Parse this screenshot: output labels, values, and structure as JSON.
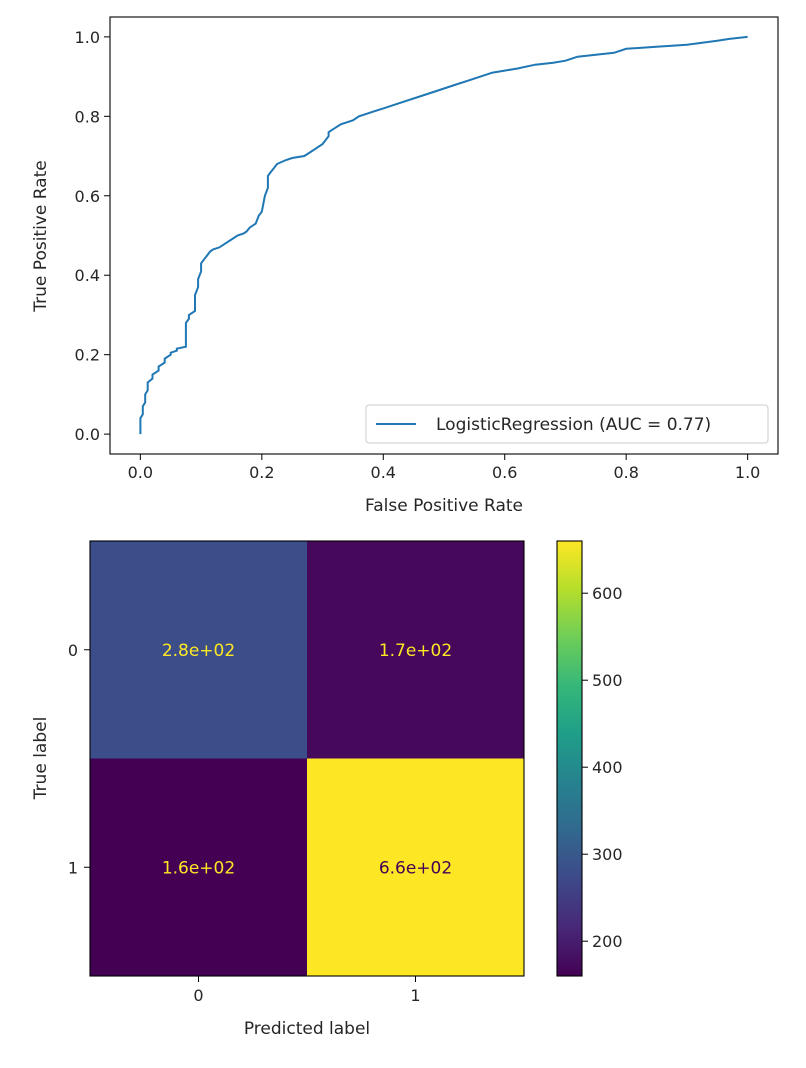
{
  "colors": {
    "roc_line": "#1f77b4",
    "axis": "#000000",
    "cell_text_dark_bg": "#fde725",
    "cell_text_light_bg": "#440154",
    "colorbar_stops": [
      "#440154",
      "#482878",
      "#3e4989",
      "#31688e",
      "#26828e",
      "#1f9e89",
      "#35b779",
      "#6ece58",
      "#b5de2b",
      "#fde725"
    ]
  },
  "chart_data": [
    {
      "type": "line",
      "xlabel": "False Positive Rate",
      "ylabel": "True Positive Rate",
      "xlim": [
        -0.05,
        1.05
      ],
      "ylim": [
        -0.05,
        1.05
      ],
      "xticks": [
        0.0,
        0.2,
        0.4,
        0.6,
        0.8,
        1.0
      ],
      "xtick_labels": [
        "0.0",
        "0.2",
        "0.4",
        "0.6",
        "0.8",
        "1.0"
      ],
      "yticks": [
        0.0,
        0.2,
        0.4,
        0.6,
        0.8,
        1.0
      ],
      "ytick_labels": [
        "0.0",
        "0.2",
        "0.4",
        "0.6",
        "0.8",
        "1.0"
      ],
      "grid": false,
      "legend": "lower-right",
      "series": [
        {
          "name": "LogisticRegression (AUC = 0.77)",
          "x": [
            0.0,
            0.0,
            0.004,
            0.004,
            0.008,
            0.008,
            0.012,
            0.012,
            0.02,
            0.02,
            0.03,
            0.03,
            0.04,
            0.04,
            0.05,
            0.05,
            0.06,
            0.06,
            0.075,
            0.075,
            0.08,
            0.08,
            0.09,
            0.09,
            0.095,
            0.095,
            0.1,
            0.1,
            0.105,
            0.11,
            0.115,
            0.12,
            0.13,
            0.14,
            0.15,
            0.16,
            0.17,
            0.175,
            0.18,
            0.19,
            0.195,
            0.2,
            0.205,
            0.21,
            0.21,
            0.215,
            0.22,
            0.225,
            0.24,
            0.25,
            0.27,
            0.28,
            0.29,
            0.3,
            0.31,
            0.31,
            0.32,
            0.33,
            0.35,
            0.36,
            0.37,
            0.38,
            0.4,
            0.42,
            0.44,
            0.46,
            0.48,
            0.5,
            0.52,
            0.54,
            0.56,
            0.58,
            0.6,
            0.62,
            0.65,
            0.68,
            0.7,
            0.72,
            0.75,
            0.78,
            0.8,
            0.85,
            0.9,
            0.95,
            0.97,
            1.0
          ],
          "y": [
            0.0,
            0.04,
            0.05,
            0.07,
            0.08,
            0.1,
            0.11,
            0.13,
            0.14,
            0.15,
            0.16,
            0.17,
            0.18,
            0.19,
            0.2,
            0.205,
            0.21,
            0.215,
            0.22,
            0.28,
            0.29,
            0.3,
            0.31,
            0.35,
            0.37,
            0.39,
            0.41,
            0.43,
            0.44,
            0.45,
            0.46,
            0.465,
            0.47,
            0.48,
            0.49,
            0.5,
            0.505,
            0.51,
            0.52,
            0.53,
            0.55,
            0.56,
            0.6,
            0.62,
            0.65,
            0.66,
            0.67,
            0.68,
            0.69,
            0.695,
            0.7,
            0.71,
            0.72,
            0.73,
            0.75,
            0.76,
            0.77,
            0.78,
            0.79,
            0.8,
            0.805,
            0.81,
            0.82,
            0.83,
            0.84,
            0.85,
            0.86,
            0.87,
            0.88,
            0.89,
            0.9,
            0.91,
            0.915,
            0.92,
            0.93,
            0.935,
            0.94,
            0.95,
            0.955,
            0.96,
            0.97,
            0.975,
            0.98,
            0.99,
            0.995,
            1.0
          ]
        }
      ]
    },
    {
      "type": "heatmap",
      "xlabel": "Predicted label",
      "ylabel": "True label",
      "x_categories": [
        "0",
        "1"
      ],
      "y_categories": [
        "0",
        "1"
      ],
      "values": [
        [
          280,
          170
        ],
        [
          160,
          660
        ]
      ],
      "cell_labels": [
        [
          "2.8e+02",
          "1.7e+02"
        ],
        [
          "1.6e+02",
          "6.6e+02"
        ]
      ],
      "colormap": "viridis",
      "color_range": [
        160,
        660
      ],
      "colorbar_ticks": [
        200,
        300,
        400,
        500,
        600
      ],
      "colorbar_tick_labels": [
        "200",
        "300",
        "400",
        "500",
        "600"
      ]
    }
  ]
}
